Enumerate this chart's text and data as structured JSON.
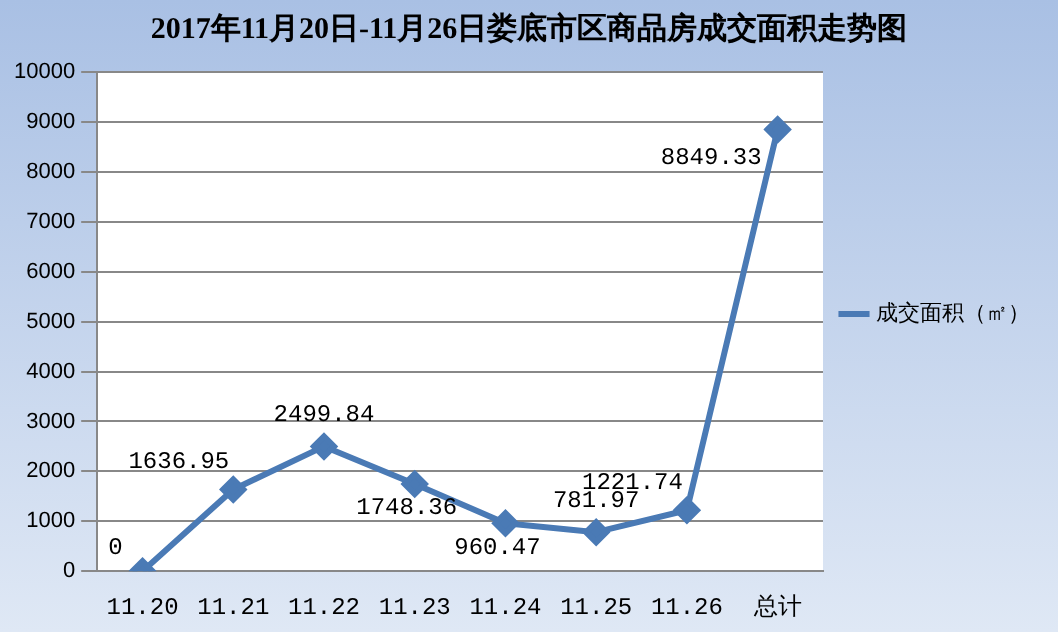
{
  "chart_data": {
    "type": "line",
    "title": "2017年11月20日-11月26日娄底市区商品房成交面积走势图",
    "categories": [
      "11.20",
      "11.21",
      "11.22",
      "11.23",
      "11.24",
      "11.25",
      "11.26",
      "总计"
    ],
    "series": [
      {
        "name": "成交面积（㎡）",
        "color": "#4a7ab5",
        "values": [
          0,
          1636.95,
          2499.84,
          1748.36,
          960.47,
          781.97,
          1221.74,
          8849.33
        ]
      }
    ],
    "ylim": [
      0,
      10000
    ],
    "yticks": [
      0,
      1000,
      2000,
      3000,
      4000,
      5000,
      6000,
      7000,
      8000,
      9000,
      10000
    ],
    "grid": "y",
    "legend": "right",
    "marker": "diamond",
    "line_style": "solid",
    "data_labels": true
  }
}
